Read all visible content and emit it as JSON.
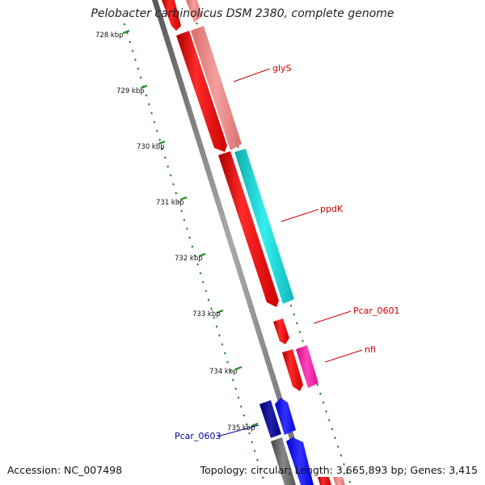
{
  "title": "Pelobacter carbinolicus DSM 2380, complete genome",
  "footer": {
    "accession": "Accession: NC_007498",
    "summary": "Topology: circular; Length: 3,665,893 bp; Genes: 3,415"
  },
  "ruler": {
    "labels": [
      "728 kbp",
      "729 kbp",
      "730 kbp",
      "731 kbp",
      "732 kbp",
      "733 kbp",
      "734 kbp",
      "735 kbp"
    ],
    "color": "#228822"
  },
  "backbone": {
    "color": "#888888"
  },
  "genes": [
    {
      "id": "gene-top-strand-1",
      "color": "#ee1111"
    },
    {
      "id": "gene-top-strand-2",
      "color": "#ee8888"
    },
    {
      "id": "gene-glyS-left",
      "color": "#ee1111"
    },
    {
      "id": "gene-glyS-right",
      "color": "#ee8888"
    },
    {
      "id": "gene-ppdK-left",
      "color": "#ee1111"
    },
    {
      "id": "gene-ppdK-right",
      "color": "#11cccc"
    },
    {
      "id": "gene-pcar0601",
      "color": "#ee1111"
    },
    {
      "id": "gene-nfi-left",
      "color": "#ee1111"
    },
    {
      "id": "gene-nfi-right",
      "color": "#ee1199"
    },
    {
      "id": "gene-pcar0603-a",
      "color": "#111188"
    },
    {
      "id": "gene-pcar0603-b",
      "color": "#1111ee"
    },
    {
      "id": "gene-bottom-grey",
      "color": "#666666"
    },
    {
      "id": "gene-bottom-blue",
      "color": "#1111ee"
    },
    {
      "id": "gene-bottom-red",
      "color": "#ee1111"
    }
  ],
  "gene_labels": [
    {
      "text": "glyS",
      "color": "#cc0000"
    },
    {
      "text": "ppdK",
      "color": "#cc0000"
    },
    {
      "text": "Pcar_0601",
      "color": "#cc0000"
    },
    {
      "text": "nfi",
      "color": "#cc0000"
    },
    {
      "text": "Pcar_0603",
      "color": "#000099"
    }
  ]
}
